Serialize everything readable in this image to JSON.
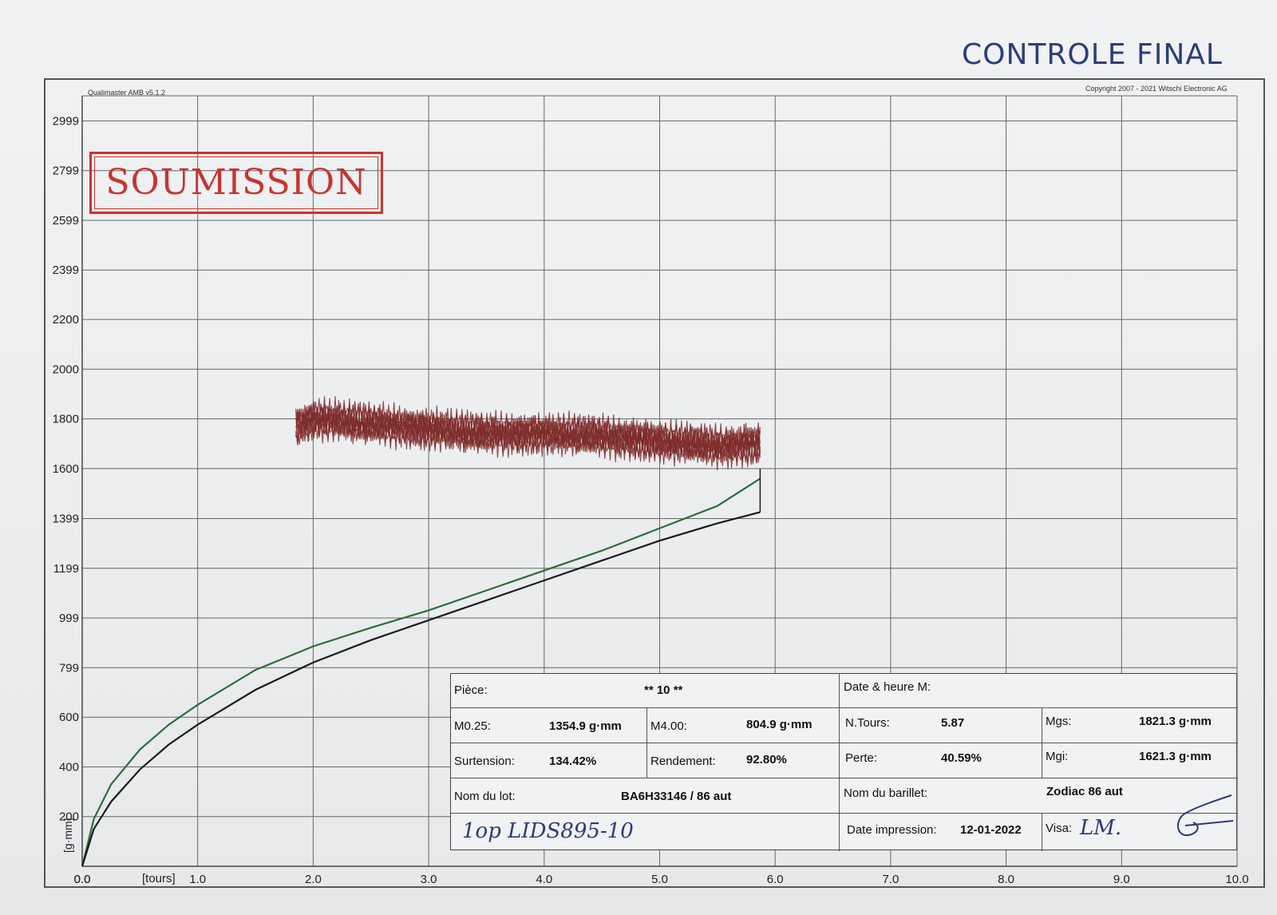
{
  "page": {
    "heading": "CONTROLE FINAL"
  },
  "header": {
    "software": "Qualimaster AMB v5.1.2",
    "copyright": "Copyright 2007 - 2021 Witschi Electronic AG"
  },
  "stamp": {
    "text": "SOUMISSION",
    "color": "#c8342f"
  },
  "chart_data": {
    "type": "line",
    "xlabel": "[tours]",
    "ylabel": "[g·mm]",
    "xlim": [
      0,
      10
    ],
    "ylim": [
      0,
      3100
    ],
    "x_ticks": [
      "0.0",
      "1.0",
      "2.0",
      "3.0",
      "4.0",
      "5.0",
      "6.0",
      "7.0",
      "8.0",
      "9.0",
      "10.0"
    ],
    "y_ticks": [
      "200",
      "400",
      "600",
      "799",
      "999",
      "1199",
      "1399",
      "1600",
      "1800",
      "2000",
      "2200",
      "2399",
      "2599",
      "2799",
      "2999"
    ],
    "y_tick_values": [
      200,
      400,
      600,
      799,
      999,
      1199,
      1399,
      1600,
      1800,
      2000,
      2200,
      2399,
      2599,
      2799,
      2999
    ],
    "grid": true,
    "series": [
      {
        "color": "#2f6b3e",
        "x": [
          0,
          0.1,
          0.25,
          0.5,
          0.75,
          1.0,
          1.5,
          2.0,
          2.5,
          3.0,
          3.5,
          4.0,
          4.5,
          5.0,
          5.5,
          5.87
        ],
        "y": [
          0,
          190,
          330,
          470,
          570,
          650,
          790,
          885,
          960,
          1030,
          1110,
          1190,
          1270,
          1360,
          1450,
          1560
        ]
      },
      {
        "color": "#1b1b1b",
        "x": [
          0,
          0.1,
          0.25,
          0.5,
          0.75,
          1.0,
          1.5,
          2.0,
          2.5,
          3.0,
          3.5,
          4.0,
          4.5,
          5.0,
          5.5,
          5.87
        ],
        "y": [
          0,
          150,
          260,
          390,
          490,
          570,
          710,
          820,
          910,
          990,
          1070,
          1150,
          1230,
          1310,
          1380,
          1425
        ]
      },
      {
        "color": "#7e2a2a",
        "x": [
          1.85,
          2.0,
          2.5,
          3.0,
          3.5,
          4.0,
          4.5,
          5.0,
          5.5,
          5.87
        ],
        "y": [
          1770,
          1800,
          1780,
          1760,
          1740,
          1740,
          1730,
          1710,
          1690,
          1700
        ]
      }
    ]
  },
  "info": {
    "piece_label": "Pièce:",
    "piece_value": "** 10 **",
    "date_label": "Date & heure M:",
    "m025_label": "M0.25:",
    "m025_value": "1354.9 g·mm",
    "m400_label": "M4.00:",
    "m400_value": "804.9 g·mm",
    "ntours_label": "N.Tours:",
    "ntours_value": "5.87",
    "mgs_label": "Mgs:",
    "mgs_value": "1821.3 g·mm",
    "surtension_label": "Surtension:",
    "surtension_value": "134.42%",
    "rendement_label": "Rendement:",
    "rendement_value": "92.80%",
    "perte_label": "Perte:",
    "perte_value": "40.59%",
    "mgi_label": "Mgi:",
    "mgi_value": "1621.3 g·mm",
    "lot_label": "Nom du lot:",
    "lot_value": "BA6H33146 / 86 aut",
    "barillet_label": "Nom du barillet:",
    "barillet_value": "Zodiac 86 aut",
    "handwritten_note": "1op LIDS895-10",
    "impression_label": "Date impression:",
    "impression_value": "12-01-2022",
    "visa_label": "Visa:",
    "visa_value": "LM."
  }
}
